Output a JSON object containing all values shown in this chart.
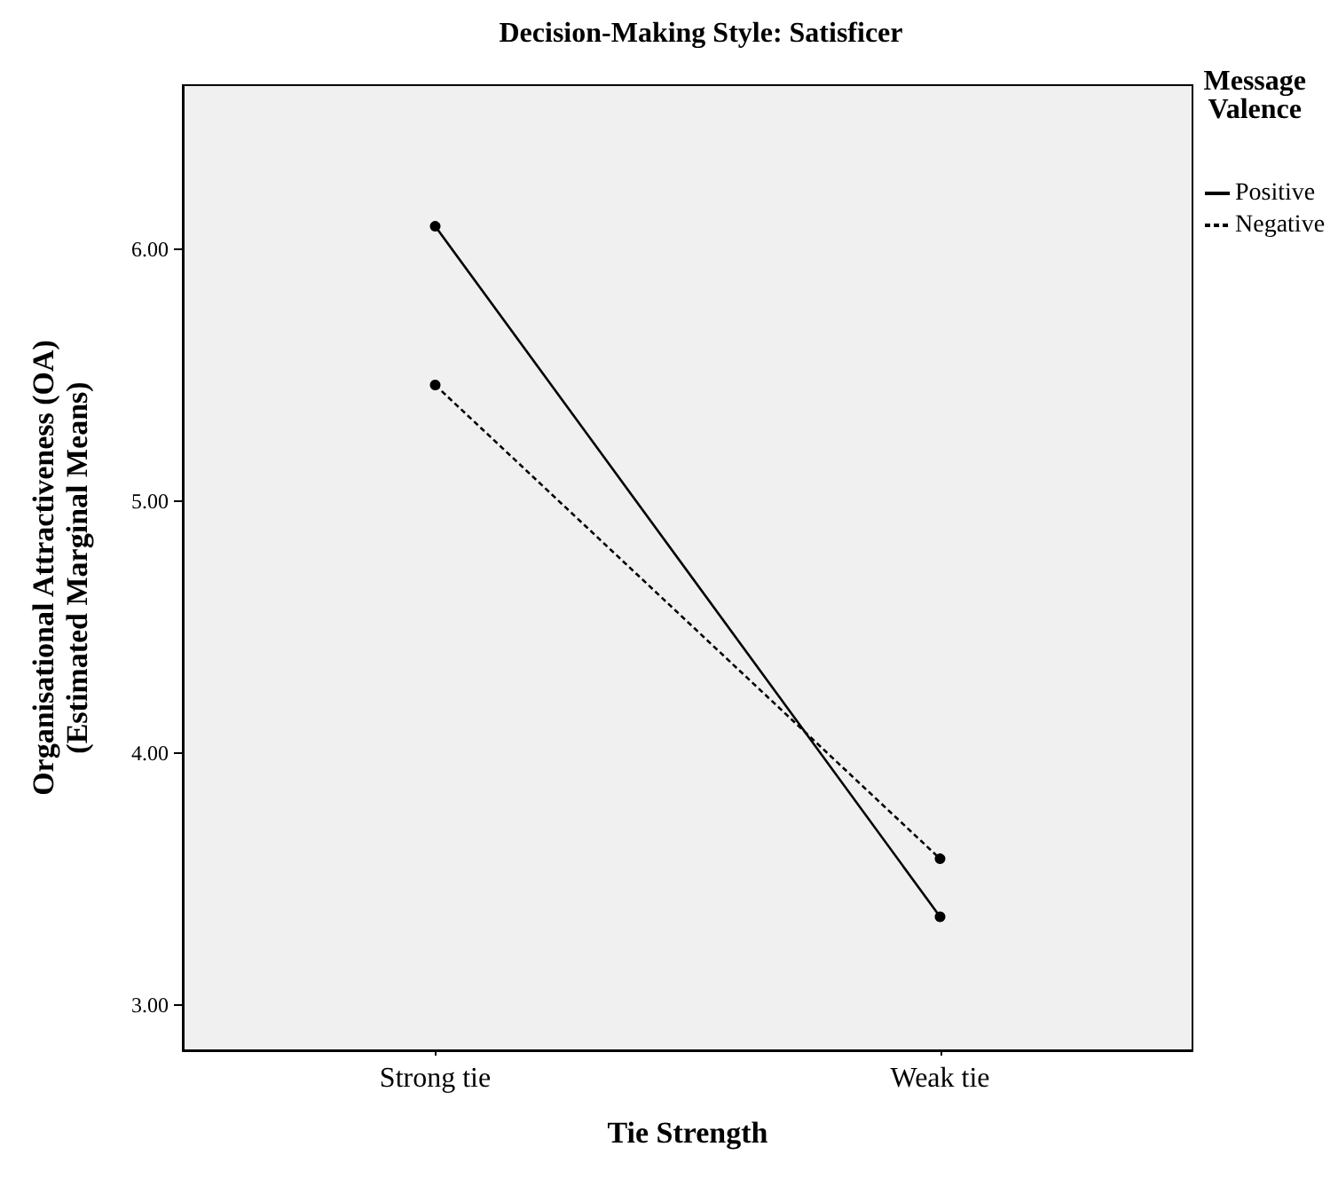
{
  "chart_data": {
    "type": "line",
    "title": "Decision-Making Style: Satisficer",
    "xlabel": "Tie Strength",
    "ylabel": "Organisational Attractiveness (OA)\n(Estimated Marginal Means)",
    "legend_title": "Message\nValence",
    "categories": [
      "Strong tie",
      "Weak tie"
    ],
    "series": [
      {
        "name": "Positive",
        "color": "#000000",
        "values": [
          6.09,
          3.35
        ],
        "line_style": "solid"
      },
      {
        "name": "Negative",
        "color": "#000000",
        "values": [
          5.46,
          3.58
        ],
        "line_style": "dashed"
      }
    ],
    "ylim": [
      2.82,
      6.65
    ],
    "yticks": [
      {
        "value": 3,
        "label": "3.00"
      },
      {
        "value": 4,
        "label": "4.00"
      },
      {
        "value": 5,
        "label": "5.00"
      },
      {
        "value": 6,
        "label": "6.00"
      }
    ],
    "grid": false,
    "legend": "top right",
    "marker": "circle"
  }
}
